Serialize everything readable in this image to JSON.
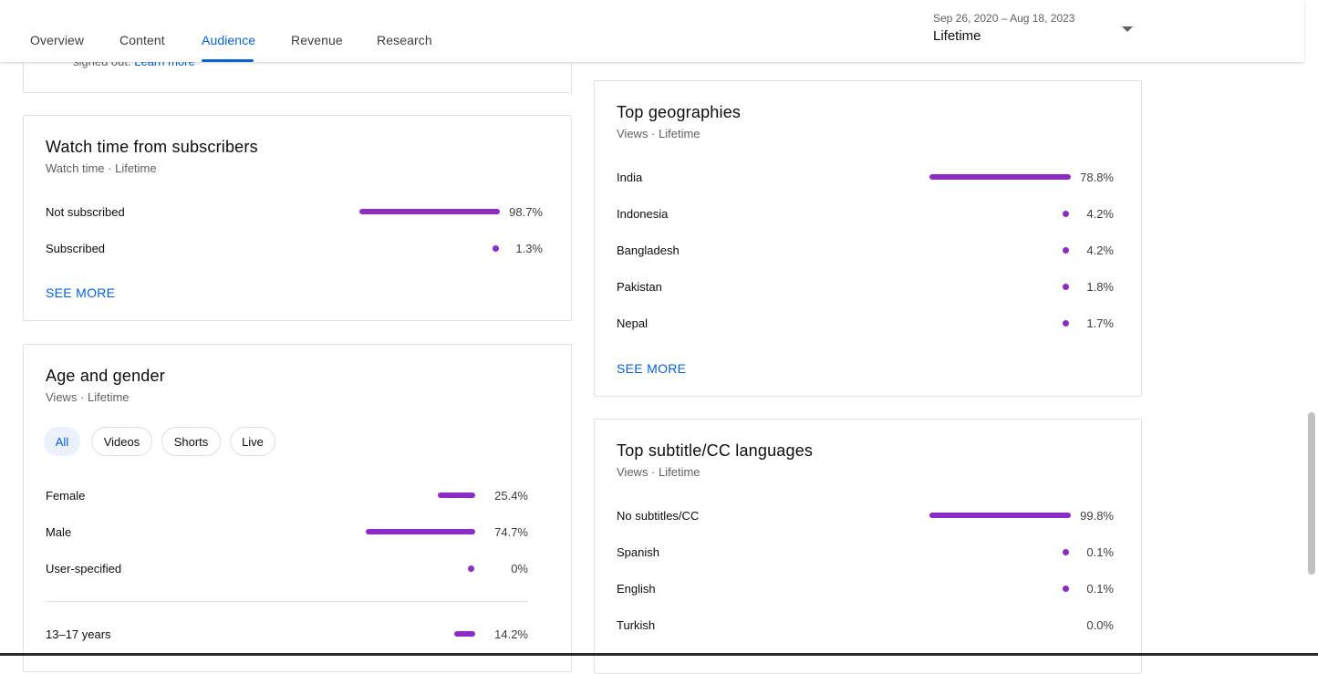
{
  "nav": {
    "tabs": [
      {
        "label": "Overview"
      },
      {
        "label": "Content"
      },
      {
        "label": "Audience"
      },
      {
        "label": "Revenue"
      },
      {
        "label": "Research"
      }
    ],
    "active_tab": "Audience",
    "date_range": "Sep 26, 2020 – Aug 18, 2023",
    "period": "Lifetime"
  },
  "top_card": {
    "text_prefix": "signed out.",
    "link": "Learn more"
  },
  "subscribers": {
    "title": "Watch time from subscribers",
    "subtitle": "Watch time · Lifetime",
    "rows": [
      {
        "label": "Not subscribed",
        "value": "98.7%",
        "fraction": 0.987
      },
      {
        "label": "Subscribed",
        "value": "1.3%",
        "fraction": 0.013
      }
    ],
    "see_more": "SEE MORE"
  },
  "age_gender": {
    "title": "Age and gender",
    "subtitle": "Views · Lifetime",
    "chips": [
      "All",
      "Videos",
      "Shorts",
      "Live"
    ],
    "active_chip": "All",
    "gender_rows": [
      {
        "label": "Female",
        "value": "25.4%",
        "fraction": 0.254
      },
      {
        "label": "Male",
        "value": "74.7%",
        "fraction": 0.747
      },
      {
        "label": "User-specified",
        "value": "0%",
        "fraction": 0.0
      }
    ],
    "age_rows": [
      {
        "label": "13–17 years",
        "value": "14.2%",
        "fraction": 0.142
      }
    ]
  },
  "geographies": {
    "title": "Top geographies",
    "subtitle": "Views · Lifetime",
    "rows": [
      {
        "label": "India",
        "value": "78.8%",
        "fraction": 0.788
      },
      {
        "label": "Indonesia",
        "value": "4.2%",
        "fraction": 0.042
      },
      {
        "label": "Bangladesh",
        "value": "4.2%",
        "fraction": 0.042
      },
      {
        "label": "Pakistan",
        "value": "1.8%",
        "fraction": 0.018
      },
      {
        "label": "Nepal",
        "value": "1.7%",
        "fraction": 0.017
      }
    ],
    "see_more": "SEE MORE"
  },
  "subtitles": {
    "title": "Top subtitle/CC languages",
    "subtitle": "Views · Lifetime",
    "rows": [
      {
        "label": "No subtitles/CC",
        "value": "99.8%",
        "fraction": 0.998
      },
      {
        "label": "Spanish",
        "value": "0.1%",
        "fraction": 0.001
      },
      {
        "label": "English",
        "value": "0.1%",
        "fraction": 0.001
      },
      {
        "label": "Turkish",
        "value": "0.0%",
        "fraction": 0.0
      }
    ]
  },
  "colors": {
    "accent": "#065fd4",
    "bar": "#8d2cc5"
  }
}
